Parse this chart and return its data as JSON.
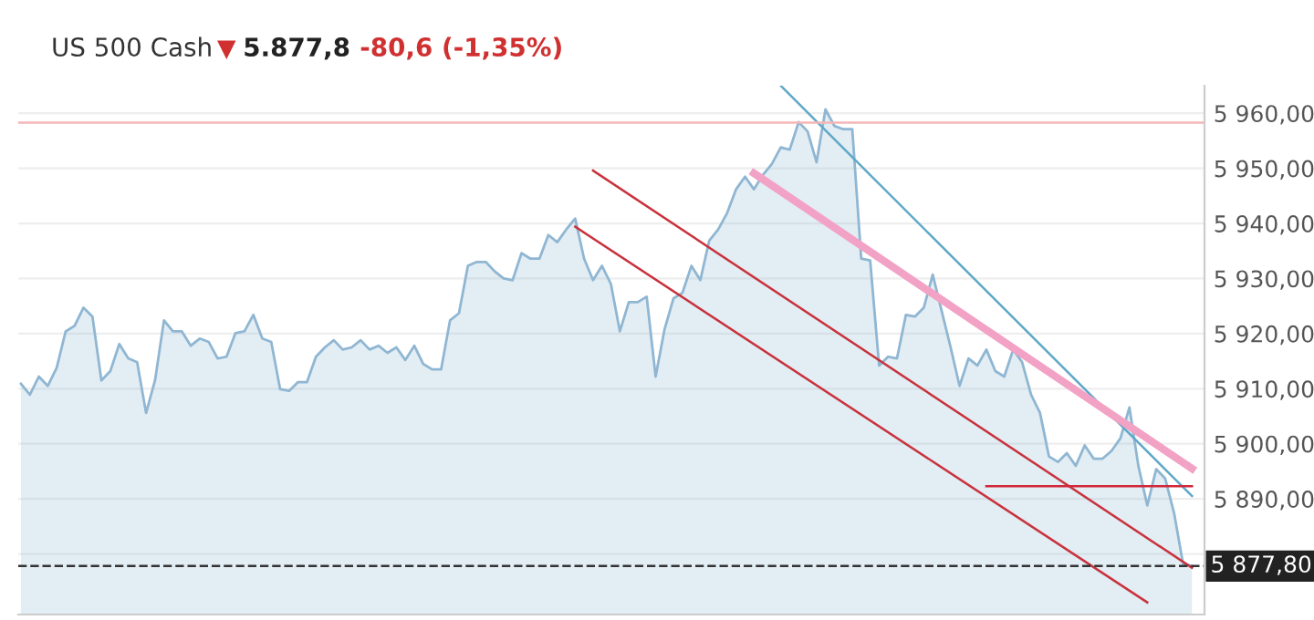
{
  "chart_data": {
    "type": "area",
    "title": "US 500 Cash",
    "annotations": [
      "5.877,8",
      "-80,6 (-1,35%)"
    ],
    "categories": [
      null,
      null,
      null,
      null,
      null,
      null,
      null,
      null,
      null,
      null,
      null,
      null,
      null,
      null,
      null,
      null,
      null,
      null,
      null,
      null,
      null,
      null,
      null,
      null,
      null,
      null,
      null,
      null,
      null,
      null,
      null,
      null,
      null,
      null,
      null,
      null,
      null,
      null,
      null,
      null,
      null,
      null,
      null,
      null,
      null,
      null,
      null,
      null,
      null,
      null,
      null,
      null,
      null,
      null,
      null,
      null,
      null,
      null,
      null,
      null,
      null,
      null,
      null,
      null,
      null,
      null,
      null,
      null,
      null,
      null,
      null,
      null,
      null,
      null,
      null,
      null,
      null,
      null,
      null,
      null,
      null,
      null,
      null,
      null,
      null,
      null,
      null,
      null,
      null,
      null,
      null,
      null,
      null,
      null,
      null,
      null,
      null,
      null,
      null,
      null,
      null,
      null,
      null,
      null,
      null,
      null,
      null,
      null,
      null,
      null,
      null,
      null,
      null,
      null,
      null,
      null,
      null,
      null,
      null,
      null,
      null,
      null,
      null,
      null,
      null,
      null,
      null,
      null,
      null,
      null,
      null,
      null
    ],
    "ylim": [
      5869,
      5965
    ],
    "yticks": [
      {
        "value": 5880,
        "label": null
      },
      {
        "value": 5890,
        "label": "5 890,00"
      },
      {
        "value": 5900,
        "label": "5 900,00"
      },
      {
        "value": 5910,
        "label": "5 910,00"
      },
      {
        "value": 5920,
        "label": "5 920,00"
      },
      {
        "value": 5930,
        "label": "5 930,00"
      },
      {
        "value": 5940,
        "label": "5 940,00"
      },
      {
        "value": 5950,
        "label": "5 950,00"
      },
      {
        "value": 5960,
        "label": "5 960,00"
      }
    ],
    "grid": "y",
    "ref_lines": [
      {
        "axis": "y",
        "value": 5958.3,
        "label": null,
        "color": "#f4b6b6",
        "line_style": "solid"
      },
      {
        "axis": "y",
        "value": 5877.8,
        "label": "5 877,80",
        "color": "#333333",
        "line_style": "dashed"
      }
    ],
    "series": [
      {
        "color": "#8fb6d2",
        "values": [
          5910.9,
          5908.9,
          5912.2,
          5910.5,
          5913.8,
          5920.4,
          5921.4,
          5924.7,
          5923.1,
          5911.5,
          5913.2,
          5918.1,
          5915.5,
          5914.8,
          5905.6,
          5911.5,
          5922.4,
          5920.4,
          5920.4,
          5917.8,
          5919.1,
          5918.5,
          5915.5,
          5915.8,
          5920.1,
          5920.4,
          5923.4,
          5919.1,
          5918.5,
          5909.9,
          5909.6,
          5911.2,
          5911.2,
          5915.8,
          5917.5,
          5918.8,
          5917.1,
          5917.5,
          5918.8,
          5917.1,
          5917.8,
          5916.5,
          5917.5,
          5915.2,
          5917.8,
          5914.5,
          5913.5,
          5913.5,
          5922.4,
          5923.7,
          5932.3,
          5933.0,
          5933.0,
          5931.3,
          5930.0,
          5929.7,
          5934.6,
          5933.6,
          5933.6,
          5937.9,
          5936.6,
          5938.9,
          5940.9,
          5933.6,
          5929.7,
          5932.3,
          5929.0,
          5920.4,
          5925.7,
          5925.7,
          5926.7,
          5912.2,
          5920.8,
          5926.4,
          5927.4,
          5932.3,
          5929.7,
          5936.9,
          5938.9,
          5941.9,
          5946.2,
          5948.5,
          5946.2,
          5948.8,
          5950.8,
          5953.8,
          5953.4,
          5958.4,
          5956.7,
          5951.1,
          5960.7,
          5957.7,
          5957.1,
          5957.1,
          5933.6,
          5933.3,
          5914.2,
          5915.8,
          5915.5,
          5923.4,
          5923.1,
          5924.7,
          5930.7,
          5924.1,
          5917.5,
          5910.5,
          5915.5,
          5914.2,
          5917.1,
          5913.2,
          5912.2,
          5917.1,
          5914.8,
          5908.9,
          5905.6,
          5897.7,
          5896.7,
          5898.3,
          5896.0,
          5899.7,
          5897.3,
          5897.3,
          5898.7,
          5901.0,
          5906.6,
          5896.0,
          5888.8,
          5895.4,
          5893.7,
          5887.4,
          5878.2,
          5877.8
        ]
      },
      {
        "type": "line",
        "color": "#5fa8c8",
        "values": [
          null,
          null,
          null,
          null,
          null,
          null,
          null,
          null,
          null,
          null,
          null,
          null,
          null,
          null,
          null,
          null,
          null,
          null,
          null,
          null,
          null,
          null,
          null,
          null,
          null,
          null,
          null,
          null,
          null,
          null,
          null,
          null,
          null,
          null,
          null,
          null,
          null,
          null,
          null,
          null,
          null,
          null,
          null,
          null,
          null,
          null,
          null,
          null,
          null,
          null,
          null,
          null,
          null,
          null,
          null,
          null,
          null,
          null,
          null,
          null,
          null,
          null,
          null,
          null,
          null,
          null,
          null,
          null,
          null,
          null,
          null,
          null,
          null,
          null,
          null,
          null,
          null,
          null,
          null,
          null,
          null,
          null,
          null,
          null,
          null,
          5965,
          null,
          null,
          null,
          null,
          null,
          null,
          null,
          null,
          null,
          null,
          null,
          null,
          null,
          null,
          null,
          null,
          null,
          null,
          null,
          null,
          null,
          null,
          null,
          null,
          null,
          null,
          null,
          null,
          null,
          null,
          null,
          null,
          null,
          null,
          null,
          null,
          null,
          null,
          null,
          null,
          null,
          null,
          null,
          null,
          null,
          5890.5
        ]
      },
      {
        "type": "line",
        "color": "#f2a2c4",
        "values": [
          null,
          null,
          null,
          null,
          null,
          null,
          null,
          null,
          null,
          null,
          null,
          null,
          null,
          null,
          null,
          null,
          null,
          null,
          null,
          null,
          null,
          null,
          null,
          null,
          null,
          null,
          null,
          null,
          null,
          null,
          null,
          null,
          null,
          null,
          null,
          null,
          null,
          null,
          null,
          null,
          null,
          null,
          null,
          null,
          null,
          null,
          null,
          null,
          null,
          null,
          null,
          null,
          null,
          null,
          null,
          null,
          null,
          null,
          null,
          null,
          null,
          null,
          null,
          null,
          null,
          null,
          null,
          null,
          null,
          null,
          null,
          null,
          null,
          null,
          null,
          null,
          null,
          null,
          null,
          null,
          null,
          null,
          5949.1,
          null,
          null,
          null,
          null,
          null,
          null,
          null,
          null,
          null,
          null,
          null,
          null,
          null,
          null,
          null,
          null,
          null,
          null,
          null,
          null,
          null,
          null,
          null,
          null,
          null,
          null,
          null,
          null,
          null,
          null,
          null,
          null,
          null,
          null,
          null,
          null,
          null,
          null,
          null,
          null,
          null,
          null,
          null,
          null,
          null,
          null,
          null,
          null,
          5895.5
        ]
      },
      {
        "type": "line",
        "color": "#c8323c",
        "values": [
          null,
          null,
          null,
          null,
          null,
          null,
          null,
          null,
          null,
          null,
          null,
          null,
          null,
          null,
          null,
          null,
          null,
          null,
          null,
          null,
          null,
          null,
          null,
          null,
          null,
          null,
          null,
          null,
          null,
          null,
          null,
          null,
          null,
          null,
          null,
          null,
          null,
          null,
          null,
          null,
          null,
          null,
          null,
          null,
          null,
          null,
          null,
          null,
          null,
          null,
          null,
          null,
          null,
          null,
          null,
          null,
          null,
          null,
          null,
          null,
          null,
          null,
          null,
          null,
          5949.6,
          null,
          null,
          null,
          null,
          null,
          null,
          null,
          null,
          null,
          null,
          null,
          null,
          null,
          null,
          null,
          null,
          null,
          null,
          null,
          null,
          null,
          null,
          null,
          null,
          null,
          null,
          null,
          null,
          null,
          null,
          null,
          null,
          null,
          null,
          null,
          null,
          null,
          null,
          null,
          null,
          null,
          null,
          null,
          null,
          null,
          null,
          null,
          null,
          null,
          null,
          null,
          null,
          null,
          null,
          null,
          null,
          null,
          null,
          null,
          null,
          null,
          null,
          null,
          null,
          null,
          null,
          5877.5
        ]
      },
      {
        "type": "line",
        "color": "#c8323c",
        "values": [
          null,
          null,
          null,
          null,
          null,
          null,
          null,
          null,
          null,
          null,
          null,
          null,
          null,
          null,
          null,
          null,
          null,
          null,
          null,
          null,
          null,
          null,
          null,
          null,
          null,
          null,
          null,
          null,
          null,
          null,
          null,
          null,
          null,
          null,
          null,
          null,
          null,
          null,
          null,
          null,
          null,
          null,
          null,
          null,
          null,
          null,
          null,
          null,
          null,
          null,
          null,
          null,
          null,
          null,
          null,
          null,
          null,
          null,
          null,
          null,
          null,
          null,
          5939.4,
          null,
          null,
          null,
          null,
          null,
          null,
          null,
          null,
          null,
          null,
          null,
          null,
          null,
          null,
          null,
          null,
          null,
          null,
          null,
          null,
          null,
          null,
          null,
          null,
          null,
          null,
          null,
          null,
          null,
          null,
          null,
          null,
          null,
          null,
          null,
          null,
          null,
          null,
          null,
          null,
          null,
          null,
          null,
          null,
          null,
          null,
          null,
          null,
          null,
          null,
          null,
          null,
          null,
          null,
          null,
          null,
          null,
          null,
          null,
          null,
          null,
          null,
          null,
          5871.2,
          null,
          null,
          null,
          null,
          null
        ]
      },
      {
        "type": "line",
        "color": "#d0283a",
        "values": [
          null,
          null,
          null,
          null,
          null,
          null,
          null,
          null,
          null,
          null,
          null,
          null,
          null,
          null,
          null,
          null,
          null,
          null,
          null,
          null,
          null,
          null,
          null,
          null,
          null,
          null,
          null,
          null,
          null,
          null,
          null,
          null,
          null,
          null,
          null,
          null,
          null,
          null,
          null,
          null,
          null,
          null,
          null,
          null,
          null,
          null,
          null,
          null,
          null,
          null,
          null,
          null,
          null,
          null,
          null,
          null,
          null,
          null,
          null,
          null,
          null,
          null,
          null,
          null,
          null,
          null,
          null,
          null,
          null,
          null,
          null,
          null,
          null,
          null,
          null,
          null,
          null,
          null,
          null,
          null,
          null,
          null,
          null,
          null,
          null,
          null,
          null,
          null,
          null,
          null,
          null,
          null,
          null,
          null,
          null,
          null,
          null,
          null,
          null,
          null,
          null,
          null,
          null,
          null,
          null,
          null,
          null,
          null,
          5892.3,
          null,
          null,
          null,
          null,
          null,
          null,
          null,
          null,
          null,
          null,
          null,
          null,
          null,
          null,
          null,
          null,
          null,
          null,
          null,
          null,
          null,
          null,
          5892.3
        ]
      }
    ]
  }
}
